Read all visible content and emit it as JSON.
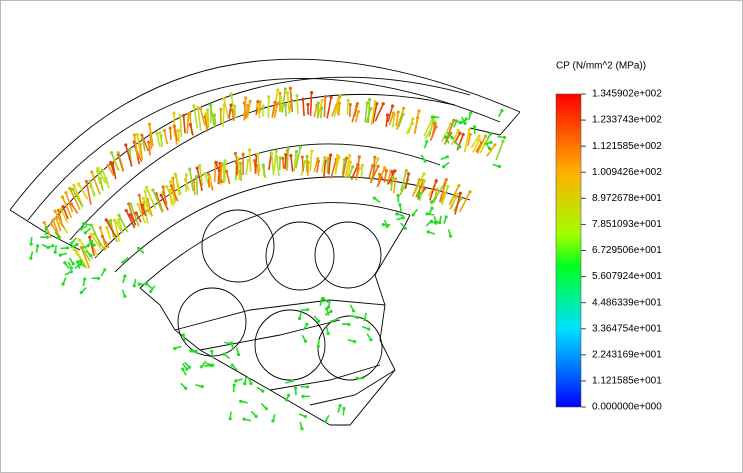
{
  "legend": {
    "title": "CP (N/mm^2 (MPa))",
    "labels": [
      "1.345902e+002",
      "1.233743e+002",
      "1.121585e+002",
      "1.009426e+002",
      "8.972678e+001",
      "7.851093e+001",
      "6.729506e+001",
      "5.607924e+001",
      "4.486339e+001",
      "3.364754e+001",
      "2.243169e+001",
      "1.121585e+001",
      "0.000000e+000"
    ]
  }
}
